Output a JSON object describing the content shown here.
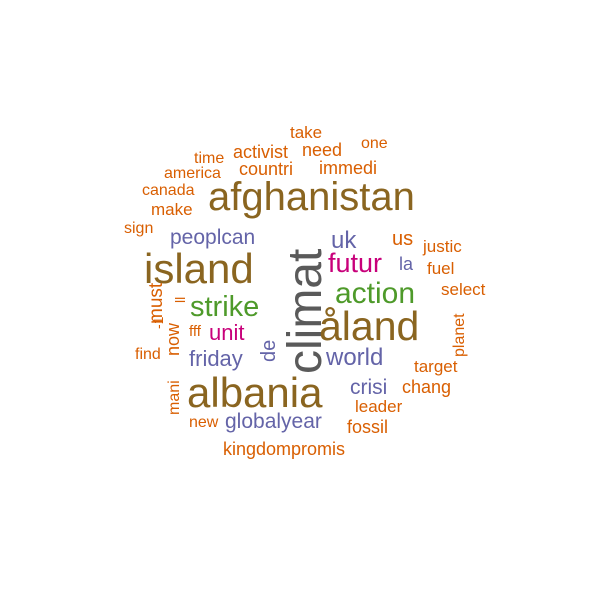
{
  "colors": {
    "orange": "#d95f02",
    "brown": "#8a6520",
    "gray": "#5a5a5a",
    "purple": "#6464a8",
    "magenta": "#c8007a",
    "green": "#4e9a2a"
  },
  "words": [
    {
      "text": "take",
      "color": "orange"
    },
    {
      "text": "one",
      "color": "orange"
    },
    {
      "text": "activist",
      "color": "orange"
    },
    {
      "text": "need",
      "color": "orange"
    },
    {
      "text": "time",
      "color": "orange"
    },
    {
      "text": "america",
      "color": "orange"
    },
    {
      "text": "countri",
      "color": "orange"
    },
    {
      "text": "immedi",
      "color": "orange"
    },
    {
      "text": "canada",
      "color": "orange"
    },
    {
      "text": "afghanistan",
      "color": "brown"
    },
    {
      "text": "make",
      "color": "orange"
    },
    {
      "text": "sign",
      "color": "orange"
    },
    {
      "text": "peoplcan",
      "color": "purple"
    },
    {
      "text": "climat",
      "color": "gray"
    },
    {
      "text": "uk",
      "color": "purple"
    },
    {
      "text": "us",
      "color": "orange"
    },
    {
      "text": "justic",
      "color": "orange"
    },
    {
      "text": "island",
      "color": "brown"
    },
    {
      "text": "futur",
      "color": "magenta"
    },
    {
      "text": "la",
      "color": "purple"
    },
    {
      "text": "fuel",
      "color": "orange"
    },
    {
      "text": "action",
      "color": "green"
    },
    {
      "text": "select",
      "color": "orange"
    },
    {
      "text": "must",
      "color": "orange"
    },
    {
      "text": "ll",
      "color": "orange"
    },
    {
      "text": "strike",
      "color": "green"
    },
    {
      "text": "åland",
      "color": "brown"
    },
    {
      "text": "-1",
      "color": "orange"
    },
    {
      "text": "planet",
      "color": "orange"
    },
    {
      "text": "fff",
      "color": "orange"
    },
    {
      "text": "unit",
      "color": "magenta"
    },
    {
      "text": "now",
      "color": "orange"
    },
    {
      "text": "de",
      "color": "purple"
    },
    {
      "text": "find",
      "color": "orange"
    },
    {
      "text": "friday",
      "color": "purple"
    },
    {
      "text": "world",
      "color": "purple"
    },
    {
      "text": "target",
      "color": "orange"
    },
    {
      "text": "mani",
      "color": "orange"
    },
    {
      "text": "albania",
      "color": "brown"
    },
    {
      "text": "crisi",
      "color": "purple"
    },
    {
      "text": "chang",
      "color": "orange"
    },
    {
      "text": "leader",
      "color": "orange"
    },
    {
      "text": "new",
      "color": "orange"
    },
    {
      "text": "globalyear",
      "color": "purple"
    },
    {
      "text": "fossil",
      "color": "orange"
    },
    {
      "text": "kingdompromis",
      "color": "orange"
    }
  ]
}
